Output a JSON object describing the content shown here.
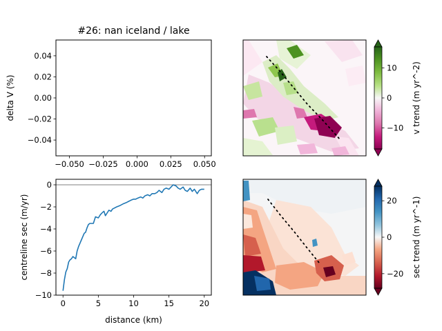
{
  "chart_data": [
    {
      "type": "line",
      "title": "#26: nan iceland / lake",
      "xlabel": "",
      "ylabel": "delta V (%)",
      "xlim": [
        -0.06,
        0.055
      ],
      "ylim": [
        -0.055,
        0.055
      ],
      "xticks": [
        -0.05,
        -0.025,
        0.0,
        0.025,
        0.05
      ],
      "xtick_labels": [
        "−0.050",
        "−0.025",
        "0.000",
        "0.025",
        "0.050"
      ],
      "yticks": [
        0.04,
        0.02,
        0.0,
        -0.02,
        -0.04
      ],
      "ytick_labels": [
        "0.04",
        "0.02",
        "0.00",
        "−0.02",
        "−0.04"
      ],
      "series": []
    },
    {
      "type": "line",
      "title": "",
      "xlabel": "distance (km)",
      "ylabel": "centreline sec (m/yr)",
      "xlim": [
        -1,
        21
      ],
      "ylim": [
        -10,
        0.5
      ],
      "xticks": [
        0,
        5,
        10,
        15,
        20
      ],
      "xtick_labels": [
        "0",
        "5",
        "10",
        "15",
        "20"
      ],
      "yticks": [
        0,
        -2,
        -4,
        -6,
        -8,
        -10
      ],
      "ytick_labels": [
        "0",
        "−2",
        "−4",
        "−6",
        "−8",
        "−10"
      ],
      "reference_line_y": 0,
      "series": [
        {
          "color": "#1f77b4",
          "x": [
            0.0,
            0.2,
            0.4,
            0.6,
            0.8,
            1.0,
            1.2,
            1.4,
            1.6,
            1.8,
            2.0,
            2.2,
            2.4,
            2.6,
            2.8,
            3.0,
            3.2,
            3.4,
            3.6,
            3.8,
            4.0,
            4.3,
            4.6,
            5.0,
            5.3,
            5.6,
            5.8,
            6.0,
            6.3,
            6.5,
            6.8,
            7.0,
            7.3,
            7.6,
            8.0,
            8.3,
            8.6,
            9.0,
            9.3,
            9.6,
            10.0,
            10.3,
            10.6,
            11.0,
            11.3,
            11.6,
            12.0,
            12.3,
            12.6,
            13.0,
            13.3,
            13.6,
            14.0,
            14.3,
            14.6,
            15.0,
            15.3,
            15.6,
            16.0,
            16.3,
            16.6,
            17.0,
            17.3,
            17.6,
            18.0,
            18.3,
            18.6,
            19.0,
            19.3,
            19.6,
            20.0
          ],
          "y": [
            -9.6,
            -8.6,
            -7.9,
            -7.6,
            -7.0,
            -6.8,
            -6.7,
            -6.5,
            -6.6,
            -6.7,
            -6.0,
            -5.6,
            -5.3,
            -5.0,
            -4.7,
            -4.4,
            -4.3,
            -3.9,
            -3.6,
            -3.5,
            -3.5,
            -3.5,
            -2.9,
            -3.0,
            -2.7,
            -2.5,
            -2.4,
            -2.8,
            -2.5,
            -2.3,
            -2.4,
            -2.2,
            -2.1,
            -2.0,
            -1.9,
            -1.8,
            -1.7,
            -1.6,
            -1.5,
            -1.4,
            -1.3,
            -1.3,
            -1.2,
            -1.1,
            -1.2,
            -1.0,
            -0.9,
            -1.0,
            -0.8,
            -0.8,
            -0.7,
            -0.5,
            -0.7,
            -0.4,
            -0.3,
            -0.4,
            -0.2,
            0.0,
            -0.1,
            -0.3,
            -0.4,
            -0.2,
            -0.5,
            -0.6,
            -0.3,
            -0.6,
            -0.4,
            -0.8,
            -0.5,
            -0.4,
            -0.4
          ]
        }
      ]
    },
    {
      "type": "heatmap",
      "title": "",
      "colormap": "PiYG",
      "colorbar_label": "v trend (m yr^-2)",
      "clim": [
        -17,
        17
      ],
      "colorbar_ticks": [
        10,
        0,
        -10
      ],
      "colorbar_tick_labels": [
        "10",
        "0",
        "−10"
      ],
      "extend": "both",
      "centreline": "dotted black line running from upper-left to lower-right"
    },
    {
      "type": "heatmap",
      "title": "",
      "colormap": "RdBu",
      "colorbar_label": "sec trend (m yr^-1)",
      "clim": [
        -28,
        28
      ],
      "colorbar_ticks": [
        20,
        0,
        -20
      ],
      "colorbar_tick_labels": [
        "20",
        "0",
        "−20"
      ],
      "extend": "both",
      "centreline": "dotted black line running from upper-left to lower-right"
    }
  ]
}
